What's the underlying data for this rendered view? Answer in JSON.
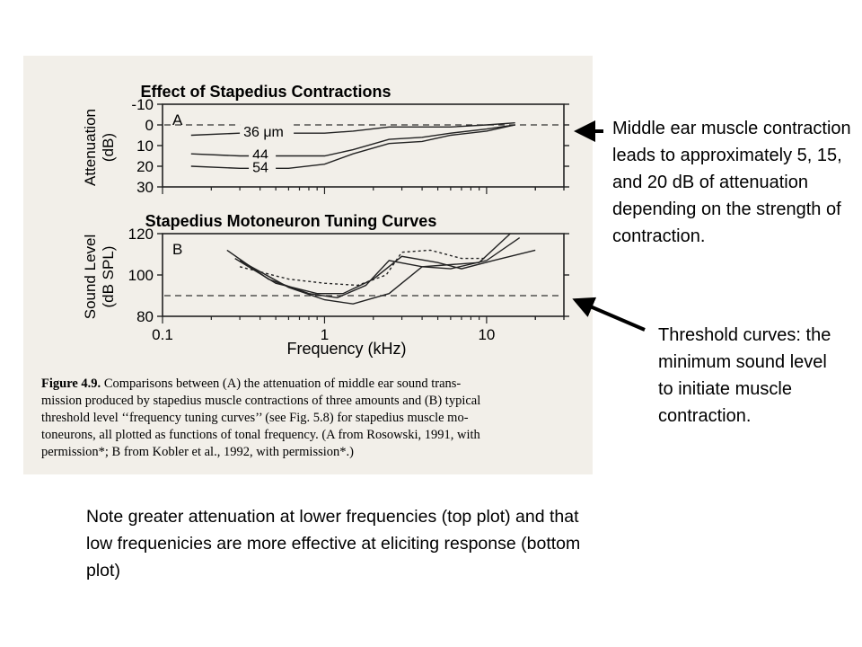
{
  "chart_data": [
    {
      "type": "line",
      "panel_label": "A",
      "title": "Effect of Stapedius Contractions",
      "ylabel": "Attenuation\n(dB)",
      "x_scale": "log",
      "xlim": [
        0.1,
        30
      ],
      "ylim": [
        -10,
        30
      ],
      "y_inverted": true,
      "y_ticks": [
        "-10",
        "0",
        "10",
        "20",
        "30"
      ],
      "series": [
        {
          "name": "36 μm",
          "x": [
            0.15,
            0.3,
            0.6,
            1.0,
            1.5,
            2.5,
            4,
            6,
            10,
            15
          ],
          "y": [
            5,
            4,
            4,
            4,
            3,
            1,
            1,
            1,
            0,
            -1
          ]
        },
        {
          "name": "44",
          "x": [
            0.15,
            0.3,
            0.6,
            1.0,
            1.5,
            2.5,
            4,
            6,
            10,
            15
          ],
          "y": [
            14,
            15,
            15,
            15,
            12,
            7,
            6,
            4,
            2,
            0
          ]
        },
        {
          "name": "54",
          "x": [
            0.15,
            0.3,
            0.6,
            1.0,
            1.5,
            2.5,
            4,
            6,
            10,
            15
          ],
          "y": [
            20,
            21,
            21,
            19,
            14,
            9,
            8,
            5,
            3,
            0
          ]
        }
      ],
      "reference_line": 0
    },
    {
      "type": "line",
      "panel_label": "B",
      "title": "Stapedius Motoneuron Tuning Curves",
      "xlabel": "Frequency (kHz)",
      "ylabel": "Sound Level\n(dB SPL)",
      "x_scale": "log",
      "xlim": [
        0.1,
        30
      ],
      "ylim": [
        80,
        120
      ],
      "x_ticks": [
        "0.1",
        "1",
        "10"
      ],
      "y_ticks": [
        "80",
        "100",
        "120"
      ],
      "series": [
        {
          "x": [
            0.25,
            0.45,
            0.8,
            1.2,
            1.8,
            2.5,
            4,
            6,
            9,
            14
          ],
          "y": [
            112,
            98,
            91,
            89,
            95,
            107,
            104,
            105,
            106,
            120
          ]
        },
        {
          "x": [
            0.28,
            0.5,
            0.9,
            1.3,
            2.0,
            3.0,
            5,
            7,
            11,
            20
          ],
          "y": [
            108,
            96,
            91,
            91,
            98,
            109,
            106,
            103,
            107,
            112
          ]
        },
        {
          "x": [
            0.3,
            0.6,
            1.0,
            1.5,
            2.5,
            4,
            6,
            10,
            16
          ],
          "y": [
            107,
            94,
            88,
            86,
            91,
            104,
            103,
            107,
            118
          ]
        },
        {
          "x": [
            0.3,
            0.6,
            1.0,
            1.6,
            2.4,
            3.0,
            4.5,
            7,
            10
          ],
          "y": [
            104,
            98,
            96,
            95,
            100,
            111,
            112,
            108,
            108
          ],
          "style": "dotted"
        }
      ],
      "reference_line": 90
    }
  ],
  "figure_caption": {
    "lead": "Figure 4.9.",
    "lines": [
      " Comparisons between (A) the attenuation of middle ear sound trans-",
      "mission produced by stapedius muscle contractions of three amounts and (B) typical",
      "threshold level ‘‘frequency tuning curves’’ (see Fig. 5.8) for stapedius muscle mo-",
      "toneurons, all plotted as functions of tonal frequency. (A from Rosowski, 1991, with",
      "permission*; B from Kobler et al., 1992, with permission*.)"
    ]
  },
  "annotations": {
    "right_top": "Middle ear muscle contraction leads to approximately 5, 15, and 20 dB of attenuation depending on the strength of contraction.",
    "right_bottom": "Threshold curves: the minimum sound level to initiate muscle contraction.",
    "bottom": "Note greater attenuation at lower frequencies (top plot) and that low frequenicies are more effective at eliciting response (bottom plot)"
  }
}
